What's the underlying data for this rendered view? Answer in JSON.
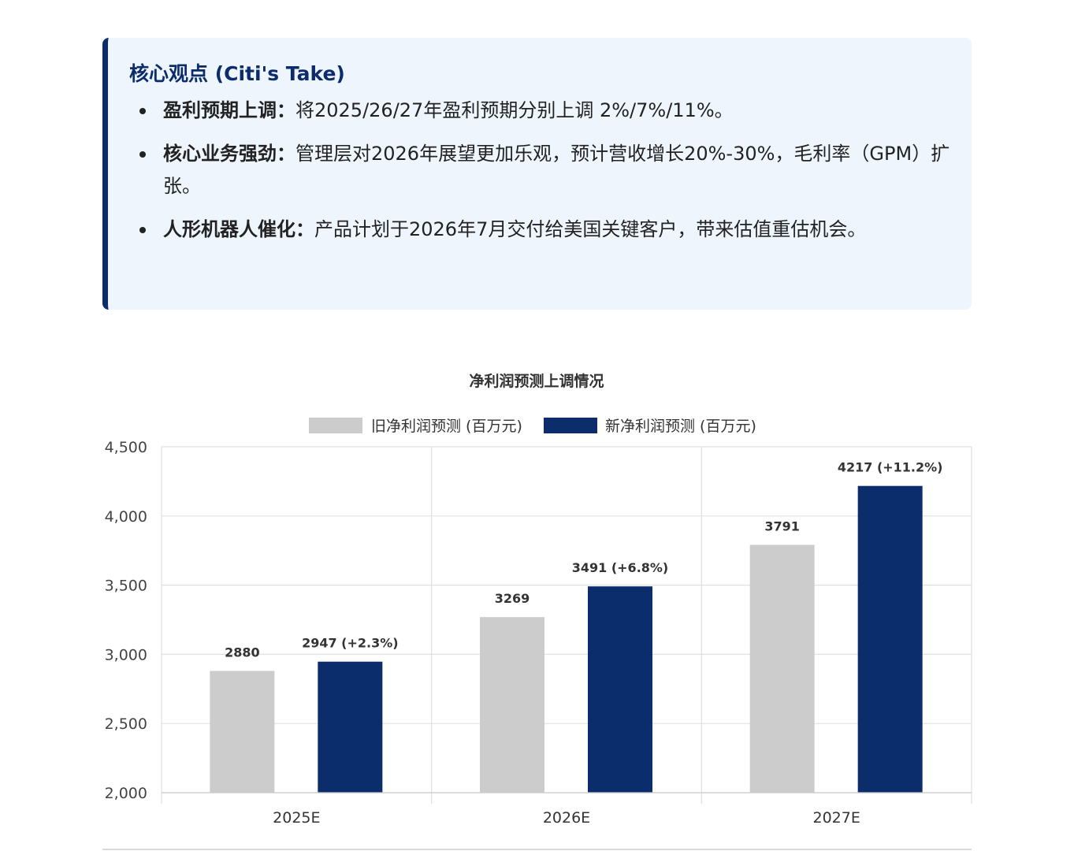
{
  "callout": {
    "title": "核心观点 (Citi's Take)",
    "items": [
      {
        "label": "盈利预期上调：",
        "text": "将2025/26/27年盈利预期分别上调 2%/7%/11%。"
      },
      {
        "label": "核心业务强劲：",
        "text": "管理层对2026年展望更加乐观，预计营收增长20%-30%，毛利率（GPM）扩张。"
      },
      {
        "label": "人形机器人催化：",
        "text": "产品计划于2026年7月交付给美国关键客户，带来估值重估机会。"
      }
    ],
    "accent_color": "#0b2d6b",
    "background_color": "#eef5fd"
  },
  "chart_data": {
    "type": "bar",
    "title": "净利润预测上调情况",
    "categories": [
      "2025E",
      "2026E",
      "2027E"
    ],
    "series": [
      {
        "name": "旧净利润预测 (百万元)",
        "values": [
          2880,
          3269,
          3791
        ],
        "labels": [
          "2880",
          "3269",
          "3791"
        ],
        "color": "#cccccc"
      },
      {
        "name": "新净利润预测 (百万元)",
        "values": [
          2947,
          3491,
          4217
        ],
        "labels": [
          "2947 (+2.3%)",
          "3491 (+6.8%)",
          "4217 (+11.2%)"
        ],
        "color": "#0b2d6b"
      }
    ],
    "ylim": [
      2000,
      4500
    ],
    "yticks": [
      2000,
      2500,
      3000,
      3500,
      4000,
      4500
    ],
    "ytick_labels": [
      "2,000",
      "2,500",
      "3,000",
      "3,500",
      "4,000",
      "4,500"
    ],
    "legend_position": "top-center",
    "grid": true
  }
}
